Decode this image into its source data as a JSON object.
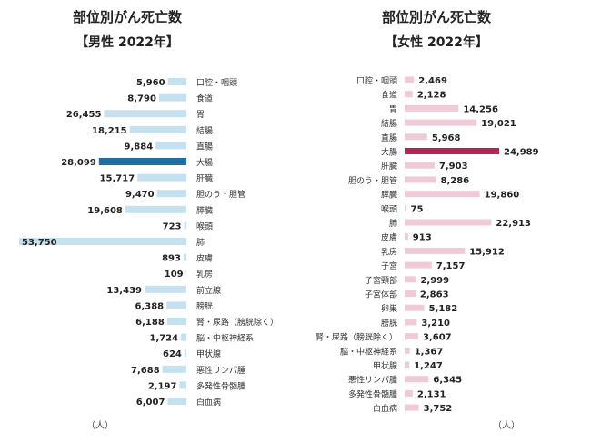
{
  "colors": {
    "male_bar": "#c5e0ee",
    "male_highlight": "#1f6fa3",
    "female_bar": "#f0cad6",
    "female_highlight": "#b32457"
  },
  "chart_data": [
    {
      "type": "bar",
      "orientation": "horizontal",
      "title": "部位別がん死亡数",
      "subtitle": "【男性 2022年】",
      "unit": "（人）",
      "highlight": "大腸",
      "categories": [
        "口腔・咽頭",
        "食道",
        "胃",
        "結腸",
        "直腸",
        "大腸",
        "肝臓",
        "胆のう・胆管",
        "膵臓",
        "喉頭",
        "肺",
        "皮膚",
        "乳房",
        "前立腺",
        "膀胱",
        "腎・尿路（膀胱除く）",
        "脳・中枢神経系",
        "甲状腺",
        "悪性リンパ腫",
        "多発性骨髄腫",
        "白血病"
      ],
      "values": [
        5960,
        8790,
        26455,
        18215,
        9884,
        28099,
        15717,
        9470,
        19608,
        723,
        53750,
        893,
        109,
        13439,
        6388,
        6188,
        1724,
        624,
        7688,
        2197,
        6007
      ],
      "value_labels": [
        "5,960",
        "8,790",
        "26,455",
        "18,215",
        "9,884",
        "28,099",
        "15,717",
        "9,470",
        "19,608",
        "723",
        "53,750",
        "893",
        "109",
        "13,439",
        "6,388",
        "6,188",
        "1,724",
        "624",
        "7,688",
        "2,197",
        "6,007"
      ]
    },
    {
      "type": "bar",
      "orientation": "horizontal",
      "title": "部位別がん死亡数",
      "subtitle": "【女性 2022年】",
      "unit": "（人）",
      "highlight": "大腸",
      "categories": [
        "口腔・咽頭",
        "食道",
        "胃",
        "結腸",
        "直腸",
        "大腸",
        "肝臓",
        "胆のう・胆管",
        "膵臓",
        "喉頭",
        "肺",
        "皮膚",
        "乳房",
        "子宮",
        "子宮頸部",
        "子宮体部",
        "卵巣",
        "膀胱",
        "腎・尿路（膀胱除く）",
        "脳・中枢神経系",
        "甲状腺",
        "悪性リンパ腫",
        "多発性骨髄腫",
        "白血病"
      ],
      "values": [
        2469,
        2128,
        14256,
        19021,
        5968,
        24989,
        7903,
        8286,
        19860,
        75,
        22913,
        913,
        15912,
        7157,
        2999,
        2863,
        5182,
        3210,
        3607,
        1367,
        1247,
        6345,
        2131,
        3752
      ],
      "value_labels": [
        "2,469",
        "2,128",
        "14,256",
        "19,021",
        "5,968",
        "24,989",
        "7,903",
        "8,286",
        "19,860",
        "75",
        "22,913",
        "913",
        "15,912",
        "7,157",
        "2,999",
        "2,863",
        "5,182",
        "3,210",
        "3,607",
        "1,367",
        "1,247",
        "6,345",
        "2,131",
        "3,752"
      ]
    }
  ]
}
